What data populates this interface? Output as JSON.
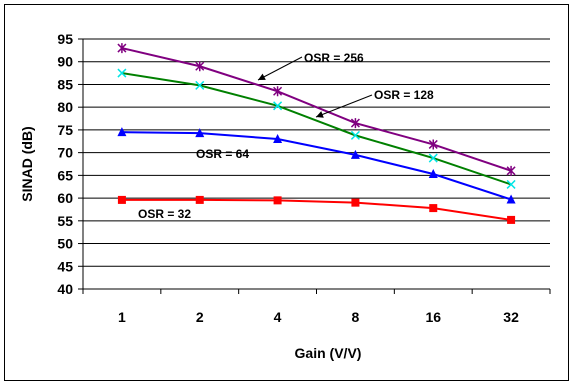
{
  "chart_data": {
    "type": "line",
    "xlabel": "Gain (V/V)",
    "ylabel": "SINAD (dB)",
    "categories": [
      "1",
      "2",
      "4",
      "8",
      "16",
      "32"
    ],
    "ylim": [
      40,
      95
    ],
    "yticks": [
      40,
      45,
      50,
      55,
      60,
      65,
      70,
      75,
      80,
      85,
      90,
      95
    ],
    "grid": "horizontal",
    "series": [
      {
        "name": "OSR = 256",
        "color": "#800080",
        "marker": "asterisk",
        "values": [
          93,
          89,
          83.5,
          76.5,
          71.8,
          66
        ]
      },
      {
        "name": "OSR = 128",
        "color": "#008000",
        "marker": "x",
        "values": [
          87.5,
          84.8,
          80.3,
          73.8,
          68.8,
          63
        ]
      },
      {
        "name": "OSR = 64",
        "color": "#0000ff",
        "marker": "triangle",
        "values": [
          74.5,
          74.3,
          73,
          69.5,
          65.3,
          59.7
        ]
      },
      {
        "name": "OSR = 32",
        "color": "#ff0000",
        "marker": "square",
        "values": [
          59.6,
          59.6,
          59.5,
          59,
          57.8,
          55.2
        ]
      }
    ]
  }
}
